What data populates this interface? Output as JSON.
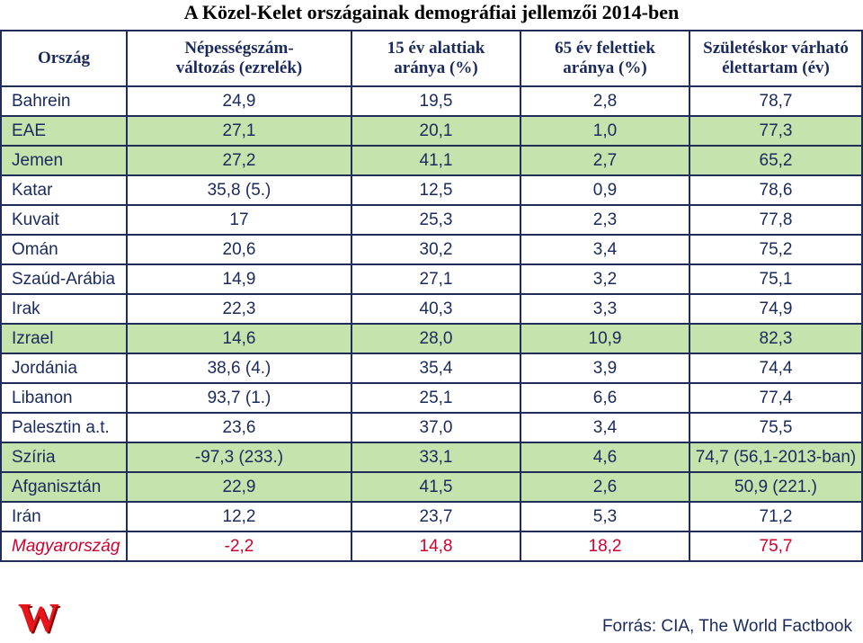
{
  "title": "A Közel-Kelet országainak demográfiai jellemzői 2014-ben",
  "headers": {
    "country": "Ország",
    "h1a": "Népességszám-",
    "h1b": "változás (ezrelék)",
    "h2a": "15 év alattiak",
    "h2b": "aránya (%)",
    "h3a": "65 év felettiek",
    "h3b": "aránya (%)",
    "h4a": "Születéskor várható",
    "h4b": "élettartam (év)"
  },
  "rows": [
    {
      "country": "Bahrein",
      "growth": "24,9",
      "under15": "19,5",
      "over65": "2,8",
      "life": "78,7"
    },
    {
      "country": "EAE",
      "growth": "27,1",
      "under15": "20,1",
      "over65": "1,0",
      "life": "77,3"
    },
    {
      "country": "Jemen",
      "growth": "27,2",
      "under15": "41,1",
      "over65": "2,7",
      "life": "65,2"
    },
    {
      "country": "Katar",
      "growth": "35,8 (5.)",
      "under15": "12,5",
      "over65": "0,9",
      "life": "78,6"
    },
    {
      "country": "Kuvait",
      "growth": "17",
      "under15": "25,3",
      "over65": "2,3",
      "life": "77,8"
    },
    {
      "country": "Omán",
      "growth": "20,6",
      "under15": "30,2",
      "over65": "3,4",
      "life": "75,2"
    },
    {
      "country": "Szaúd-Arábia",
      "growth": "14,9",
      "under15": "27,1",
      "over65": "3,2",
      "life": "75,1"
    },
    {
      "country": "Irak",
      "growth": "22,3",
      "under15": "40,3",
      "over65": "3,3",
      "life": "74,9"
    },
    {
      "country": "Izrael",
      "growth": "14,6",
      "under15": "28,0",
      "over65": "10,9",
      "life": "82,3"
    },
    {
      "country": "Jordánia",
      "growth": "38,6 (4.)",
      "under15": "35,4",
      "over65": "3,9",
      "life": "74,4"
    },
    {
      "country": "Libanon",
      "growth": "93,7 (1.)",
      "under15": "25,1",
      "over65": "6,6",
      "life": "77,4"
    },
    {
      "country": "Palesztin a.t.",
      "growth": "23,6",
      "under15": "37,0",
      "over65": "3,4",
      "life": "75,5"
    },
    {
      "country": "Szíria",
      "growth": "-97,3 (233.)",
      "under15": "33,1",
      "over65": "4,6",
      "life": "74,7  (56,1-2013-ban)"
    },
    {
      "country": "Afganisztán",
      "growth": "22,9",
      "under15": "41,5",
      "over65": "2,6",
      "life": "50,9 (221.)"
    },
    {
      "country": "Irán",
      "growth": "12,2",
      "under15": "23,7",
      "over65": "5,3",
      "life": "71,2"
    },
    {
      "country": "Magyarország",
      "growth": "-2,2",
      "under15": "14,8",
      "over65": "18,2",
      "life": "75,7"
    }
  ],
  "logo_text": "W",
  "source": "Forrás: CIA, The World Factbook",
  "colors": {
    "row_green": "#c4e3ad",
    "text": "#1a2a5c",
    "highlight": "#d0002e",
    "border": "#1f2d58"
  }
}
